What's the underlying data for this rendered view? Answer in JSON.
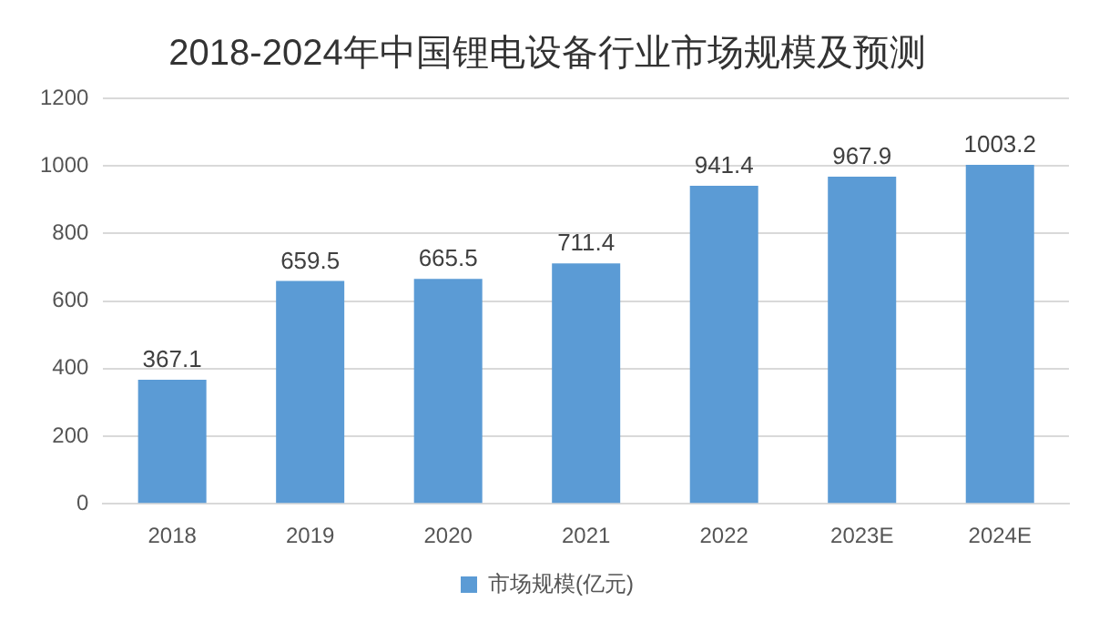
{
  "chart_data": {
    "type": "bar",
    "title": "2018-2024年中国锂电设备行业市场规模及预测",
    "categories": [
      "2018",
      "2019",
      "2020",
      "2021",
      "2022",
      "2023E",
      "2024E"
    ],
    "series": [
      {
        "name": "市场规模(亿元)",
        "color": "#5b9bd5",
        "values": [
          367.1,
          659.5,
          665.5,
          711.4,
          941.4,
          967.9,
          1003.2
        ]
      }
    ],
    "ylim": [
      0,
      1200
    ],
    "yticks": [
      0,
      200,
      400,
      600,
      800,
      1000,
      1200
    ],
    "grid": "y",
    "legend": "bottom",
    "data_labels": true
  }
}
